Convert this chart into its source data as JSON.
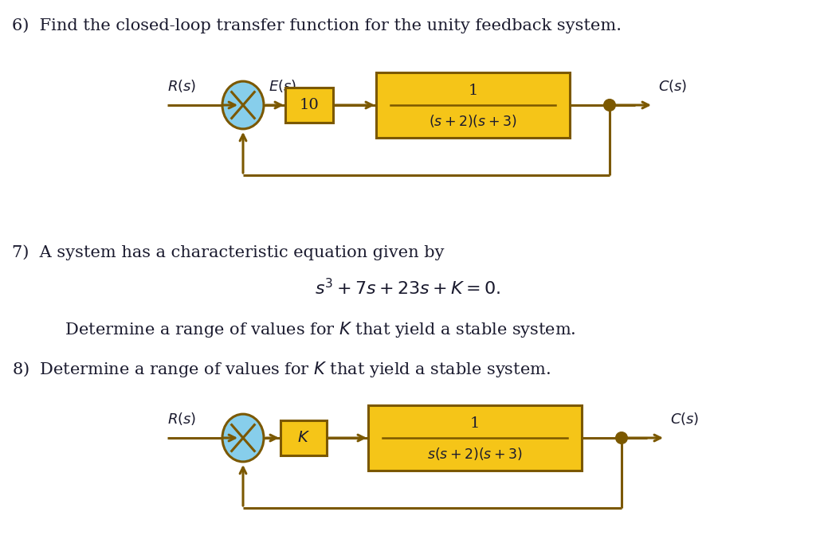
{
  "bg_color": "#ffffff",
  "text_color": "#1a1a2e",
  "line_color": "#7B5800",
  "box_fill": "#F5C518",
  "circle_fill": "#87CEEB",
  "title1": "6)  Find the closed-loop transfer function for the unity feedback system.",
  "title7": "7)  A system has a characteristic equation given by",
  "eq7": "$s^3 + 7s + 23s + K = 0.$",
  "title7b": "    Determine a range of values for $K$ that yield a stable system.",
  "title8": "8)  Determine a range of values for $K$ that yield a stable system.",
  "d1_R": "$R(s)$",
  "d1_E": "$E(s)$",
  "d1_C": "$C(s)$",
  "d1_b1": "10",
  "d1_b2_num": "1",
  "d1_b2_den": "$(s+2)(s+3)$",
  "d2_R": "$R(s)$",
  "d2_C": "$C(s)$",
  "d2_b1": "$K$",
  "d2_b2_num": "1",
  "d2_b2_den": "$s(s+2)(s+3)$",
  "plus": "$+$",
  "minus": "$-$",
  "figw": 10.24,
  "figh": 6.82,
  "dpi": 100
}
